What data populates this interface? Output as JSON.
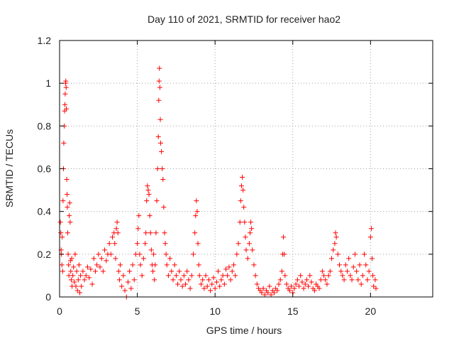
{
  "chart_data": {
    "type": "scatter",
    "title": "Day 110 of 2021, SRMTID for receiver hao2",
    "xlabel": "GPS time / hours",
    "ylabel": "SRMTID / TECUs",
    "xlim": [
      0,
      24
    ],
    "ylim": [
      0,
      1.2
    ],
    "xticks": [
      0,
      5,
      10,
      15,
      20
    ],
    "yticks": [
      0,
      0.2,
      0.4,
      0.6,
      0.8,
      1,
      1.2
    ],
    "xtick_labels": [
      "0",
      "5",
      "10",
      "15",
      "20"
    ],
    "ytick_labels": [
      "0",
      "0.2",
      "0.4",
      "0.6",
      "0.8",
      "1",
      "1.2"
    ],
    "grid": true,
    "marker": "+",
    "color": "#ff0000",
    "series": [
      {
        "name": "hao2",
        "points": [
          [
            0.05,
            0.35
          ],
          [
            0.08,
            0.3
          ],
          [
            0.1,
            0.22
          ],
          [
            0.12,
            0.2
          ],
          [
            0.15,
            0.15
          ],
          [
            0.17,
            0.28
          ],
          [
            0.2,
            0.12
          ],
          [
            0.22,
            0.45
          ],
          [
            0.25,
            0.6
          ],
          [
            0.27,
            0.72
          ],
          [
            0.3,
            0.8
          ],
          [
            0.32,
            0.87
          ],
          [
            0.34,
            0.9
          ],
          [
            0.36,
            0.95
          ],
          [
            0.38,
            1.0
          ],
          [
            0.4,
            1.01
          ],
          [
            0.42,
            0.98
          ],
          [
            0.44,
            0.88
          ],
          [
            0.46,
            0.55
          ],
          [
            0.48,
            0.48
          ],
          [
            0.5,
            0.42
          ],
          [
            0.52,
            0.3
          ],
          [
            0.55,
            0.2
          ],
          [
            0.58,
            0.15
          ],
          [
            0.6,
            0.1
          ],
          [
            0.62,
            0.38
          ],
          [
            0.65,
            0.44
          ],
          [
            0.68,
            0.35
          ],
          [
            0.7,
            0.17
          ],
          [
            0.72,
            0.12
          ],
          [
            0.75,
            0.08
          ],
          [
            0.78,
            0.18
          ],
          [
            0.8,
            0.05
          ],
          [
            0.85,
            0.1
          ],
          [
            0.9,
            0.14
          ],
          [
            0.95,
            0.07
          ],
          [
            1.0,
            0.2
          ],
          [
            1.05,
            0.05
          ],
          [
            1.1,
            0.12
          ],
          [
            1.15,
            0.03
          ],
          [
            1.2,
            0.08
          ],
          [
            1.25,
            0.15
          ],
          [
            1.3,
            0.02
          ],
          [
            1.35,
            0.1
          ],
          [
            1.4,
            0.05
          ],
          [
            1.5,
            0.12
          ],
          [
            1.6,
            0.08
          ],
          [
            1.7,
            0.1
          ],
          [
            1.8,
            0.14
          ],
          [
            1.9,
            0.09
          ],
          [
            2.0,
            0.13
          ],
          [
            2.1,
            0.06
          ],
          [
            2.2,
            0.18
          ],
          [
            2.3,
            0.12
          ],
          [
            2.4,
            0.15
          ],
          [
            2.5,
            0.2
          ],
          [
            2.6,
            0.14
          ],
          [
            2.7,
            0.18
          ],
          [
            2.8,
            0.12
          ],
          [
            2.9,
            0.22
          ],
          [
            3.0,
            0.17
          ],
          [
            3.1,
            0.2
          ],
          [
            3.2,
            0.25
          ],
          [
            3.3,
            0.2
          ],
          [
            3.4,
            0.28
          ],
          [
            3.5,
            0.3
          ],
          [
            3.55,
            0.25
          ],
          [
            3.6,
            0.18
          ],
          [
            3.65,
            0.32
          ],
          [
            3.7,
            0.35
          ],
          [
            3.75,
            0.3
          ],
          [
            3.8,
            0.12
          ],
          [
            3.85,
            0.08
          ],
          [
            3.9,
            0.15
          ],
          [
            4.0,
            0.05
          ],
          [
            4.1,
            0.1
          ],
          [
            4.2,
            0.03
          ],
          [
            4.3,
            0.0
          ],
          [
            4.4,
            0.07
          ],
          [
            4.5,
            0.12
          ],
          [
            4.6,
            0.04
          ],
          [
            4.7,
            0.15
          ],
          [
            4.8,
            0.08
          ],
          [
            4.9,
            0.2
          ],
          [
            5.0,
            0.25
          ],
          [
            5.05,
            0.32
          ],
          [
            5.1,
            0.38
          ],
          [
            5.15,
            0.2
          ],
          [
            5.2,
            0.15
          ],
          [
            5.3,
            0.1
          ],
          [
            5.4,
            0.18
          ],
          [
            5.5,
            0.25
          ],
          [
            5.55,
            0.3
          ],
          [
            5.6,
            0.45
          ],
          [
            5.65,
            0.52
          ],
          [
            5.7,
            0.5
          ],
          [
            5.75,
            0.48
          ],
          [
            5.8,
            0.38
          ],
          [
            5.85,
            0.3
          ],
          [
            5.9,
            0.22
          ],
          [
            5.95,
            0.15
          ],
          [
            6.0,
            0.12
          ],
          [
            6.05,
            0.2
          ],
          [
            6.1,
            0.08
          ],
          [
            6.15,
            0.15
          ],
          [
            6.2,
            0.3
          ],
          [
            6.25,
            0.45
          ],
          [
            6.3,
            0.6
          ],
          [
            6.35,
            0.75
          ],
          [
            6.38,
            0.92
          ],
          [
            6.4,
            1.01
          ],
          [
            6.42,
            1.07
          ],
          [
            6.45,
            0.98
          ],
          [
            6.48,
            0.83
          ],
          [
            6.5,
            0.72
          ],
          [
            6.55,
            0.68
          ],
          [
            6.6,
            0.6
          ],
          [
            6.65,
            0.55
          ],
          [
            6.7,
            0.42
          ],
          [
            6.75,
            0.3
          ],
          [
            6.8,
            0.25
          ],
          [
            6.85,
            0.2
          ],
          [
            6.9,
            0.15
          ],
          [
            7.0,
            0.1
          ],
          [
            7.1,
            0.18
          ],
          [
            7.2,
            0.12
          ],
          [
            7.3,
            0.08
          ],
          [
            7.4,
            0.15
          ],
          [
            7.5,
            0.1
          ],
          [
            7.6,
            0.06
          ],
          [
            7.7,
            0.12
          ],
          [
            7.8,
            0.08
          ],
          [
            7.9,
            0.05
          ],
          [
            8.0,
            0.1
          ],
          [
            8.1,
            0.06
          ],
          [
            8.2,
            0.12
          ],
          [
            8.3,
            0.08
          ],
          [
            8.4,
            0.04
          ],
          [
            8.5,
            0.1
          ],
          [
            8.6,
            0.2
          ],
          [
            8.7,
            0.3
          ],
          [
            8.75,
            0.38
          ],
          [
            8.8,
            0.45
          ],
          [
            8.85,
            0.4
          ],
          [
            8.9,
            0.25
          ],
          [
            8.95,
            0.15
          ],
          [
            9.0,
            0.1
          ],
          [
            9.1,
            0.06
          ],
          [
            9.2,
            0.08
          ],
          [
            9.3,
            0.04
          ],
          [
            9.4,
            0.1
          ],
          [
            9.5,
            0.05
          ],
          [
            9.6,
            0.08
          ],
          [
            9.7,
            0.03
          ],
          [
            9.8,
            0.06
          ],
          [
            9.9,
            0.09
          ],
          [
            10.0,
            0.04
          ],
          [
            10.1,
            0.07
          ],
          [
            10.2,
            0.12
          ],
          [
            10.3,
            0.05
          ],
          [
            10.4,
            0.08
          ],
          [
            10.5,
            0.1
          ],
          [
            10.6,
            0.06
          ],
          [
            10.7,
            0.13
          ],
          [
            10.8,
            0.1
          ],
          [
            10.9,
            0.14
          ],
          [
            11.0,
            0.08
          ],
          [
            11.1,
            0.12
          ],
          [
            11.2,
            0.15
          ],
          [
            11.3,
            0.1
          ],
          [
            11.4,
            0.2
          ],
          [
            11.5,
            0.25
          ],
          [
            11.6,
            0.35
          ],
          [
            11.65,
            0.45
          ],
          [
            11.7,
            0.52
          ],
          [
            11.75,
            0.56
          ],
          [
            11.8,
            0.5
          ],
          [
            11.85,
            0.42
          ],
          [
            11.9,
            0.35
          ],
          [
            11.95,
            0.28
          ],
          [
            12.0,
            0.22
          ],
          [
            12.1,
            0.18
          ],
          [
            12.2,
            0.25
          ],
          [
            12.25,
            0.3
          ],
          [
            12.3,
            0.35
          ],
          [
            12.35,
            0.32
          ],
          [
            12.4,
            0.22
          ],
          [
            12.5,
            0.15
          ],
          [
            12.6,
            0.1
          ],
          [
            12.7,
            0.06
          ],
          [
            12.8,
            0.04
          ],
          [
            12.9,
            0.03
          ],
          [
            13.0,
            0.02
          ],
          [
            13.1,
            0.04
          ],
          [
            13.2,
            0.01
          ],
          [
            13.3,
            0.03
          ],
          [
            13.4,
            0.02
          ],
          [
            13.5,
            0.05
          ],
          [
            13.6,
            0.01
          ],
          [
            13.7,
            0.03
          ],
          [
            13.8,
            0.02
          ],
          [
            13.9,
            0.04
          ],
          [
            14.0,
            0.03
          ],
          [
            14.1,
            0.06
          ],
          [
            14.2,
            0.08
          ],
          [
            14.3,
            0.12
          ],
          [
            14.35,
            0.2
          ],
          [
            14.4,
            0.28
          ],
          [
            14.45,
            0.2
          ],
          [
            14.5,
            0.1
          ],
          [
            14.6,
            0.06
          ],
          [
            14.7,
            0.04
          ],
          [
            14.8,
            0.03
          ],
          [
            14.9,
            0.05
          ],
          [
            15.0,
            0.02
          ],
          [
            15.1,
            0.04
          ],
          [
            15.2,
            0.06
          ],
          [
            15.3,
            0.08
          ],
          [
            15.4,
            0.05
          ],
          [
            15.5,
            0.1
          ],
          [
            15.6,
            0.07
          ],
          [
            15.7,
            0.04
          ],
          [
            15.8,
            0.06
          ],
          [
            15.9,
            0.08
          ],
          [
            16.0,
            0.05
          ],
          [
            16.1,
            0.1
          ],
          [
            16.2,
            0.07
          ],
          [
            16.3,
            0.04
          ],
          [
            16.4,
            0.03
          ],
          [
            16.5,
            0.06
          ],
          [
            16.6,
            0.05
          ],
          [
            16.7,
            0.04
          ],
          [
            16.8,
            0.08
          ],
          [
            16.9,
            0.12
          ],
          [
            17.0,
            0.1
          ],
          [
            17.1,
            0.08
          ],
          [
            17.2,
            0.06
          ],
          [
            17.3,
            0.1
          ],
          [
            17.4,
            0.12
          ],
          [
            17.5,
            0.18
          ],
          [
            17.6,
            0.22
          ],
          [
            17.7,
            0.25
          ],
          [
            17.75,
            0.3
          ],
          [
            17.8,
            0.28
          ],
          [
            17.9,
            0.2
          ],
          [
            18.0,
            0.15
          ],
          [
            18.1,
            0.12
          ],
          [
            18.2,
            0.1
          ],
          [
            18.3,
            0.08
          ],
          [
            18.4,
            0.15
          ],
          [
            18.5,
            0.12
          ],
          [
            18.6,
            0.18
          ],
          [
            18.7,
            0.1
          ],
          [
            18.8,
            0.08
          ],
          [
            18.9,
            0.14
          ],
          [
            19.0,
            0.2
          ],
          [
            19.1,
            0.12
          ],
          [
            19.2,
            0.08
          ],
          [
            19.3,
            0.15
          ],
          [
            19.4,
            0.06
          ],
          [
            19.5,
            0.1
          ],
          [
            19.6,
            0.2
          ],
          [
            19.7,
            0.15
          ],
          [
            19.8,
            0.08
          ],
          [
            19.9,
            0.12
          ],
          [
            20.0,
            0.28
          ],
          [
            20.05,
            0.32
          ],
          [
            20.1,
            0.18
          ],
          [
            20.15,
            0.1
          ],
          [
            20.2,
            0.05
          ],
          [
            20.3,
            0.08
          ],
          [
            20.35,
            0.04
          ]
        ]
      }
    ]
  }
}
